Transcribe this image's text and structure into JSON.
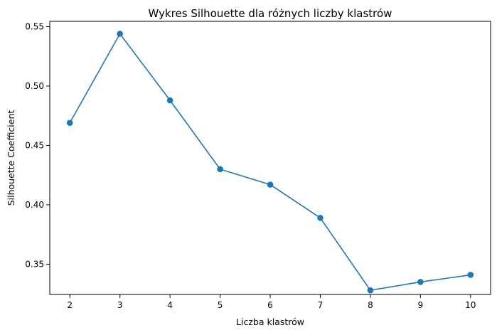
{
  "chart_data": {
    "type": "line",
    "title": "Wykres Silhouette dla różnych liczby klastrów",
    "xlabel": "Liczba klastrów",
    "ylabel": "Silhouette Coefficient",
    "x": [
      2,
      3,
      4,
      5,
      6,
      7,
      8,
      9,
      10
    ],
    "series": [
      {
        "values": [
          0.469,
          0.544,
          0.488,
          0.43,
          0.417,
          0.389,
          0.328,
          0.335,
          0.341
        ],
        "color": "#1f77b4",
        "marker": "circle"
      }
    ],
    "xlim": [
      1.6,
      10.4
    ],
    "ylim": [
      0.3245,
      0.5545
    ],
    "x_ticks": [
      2,
      3,
      4,
      5,
      6,
      7,
      8,
      9,
      10
    ],
    "x_tick_labels": [
      "2",
      "3",
      "4",
      "5",
      "6",
      "7",
      "8",
      "9",
      "10"
    ],
    "y_ticks": [
      0.35,
      0.4,
      0.45,
      0.5,
      0.55
    ],
    "y_tick_labels": [
      "0.35",
      "0.40",
      "0.45",
      "0.50",
      "0.55"
    ],
    "grid": false,
    "legend": "none"
  }
}
